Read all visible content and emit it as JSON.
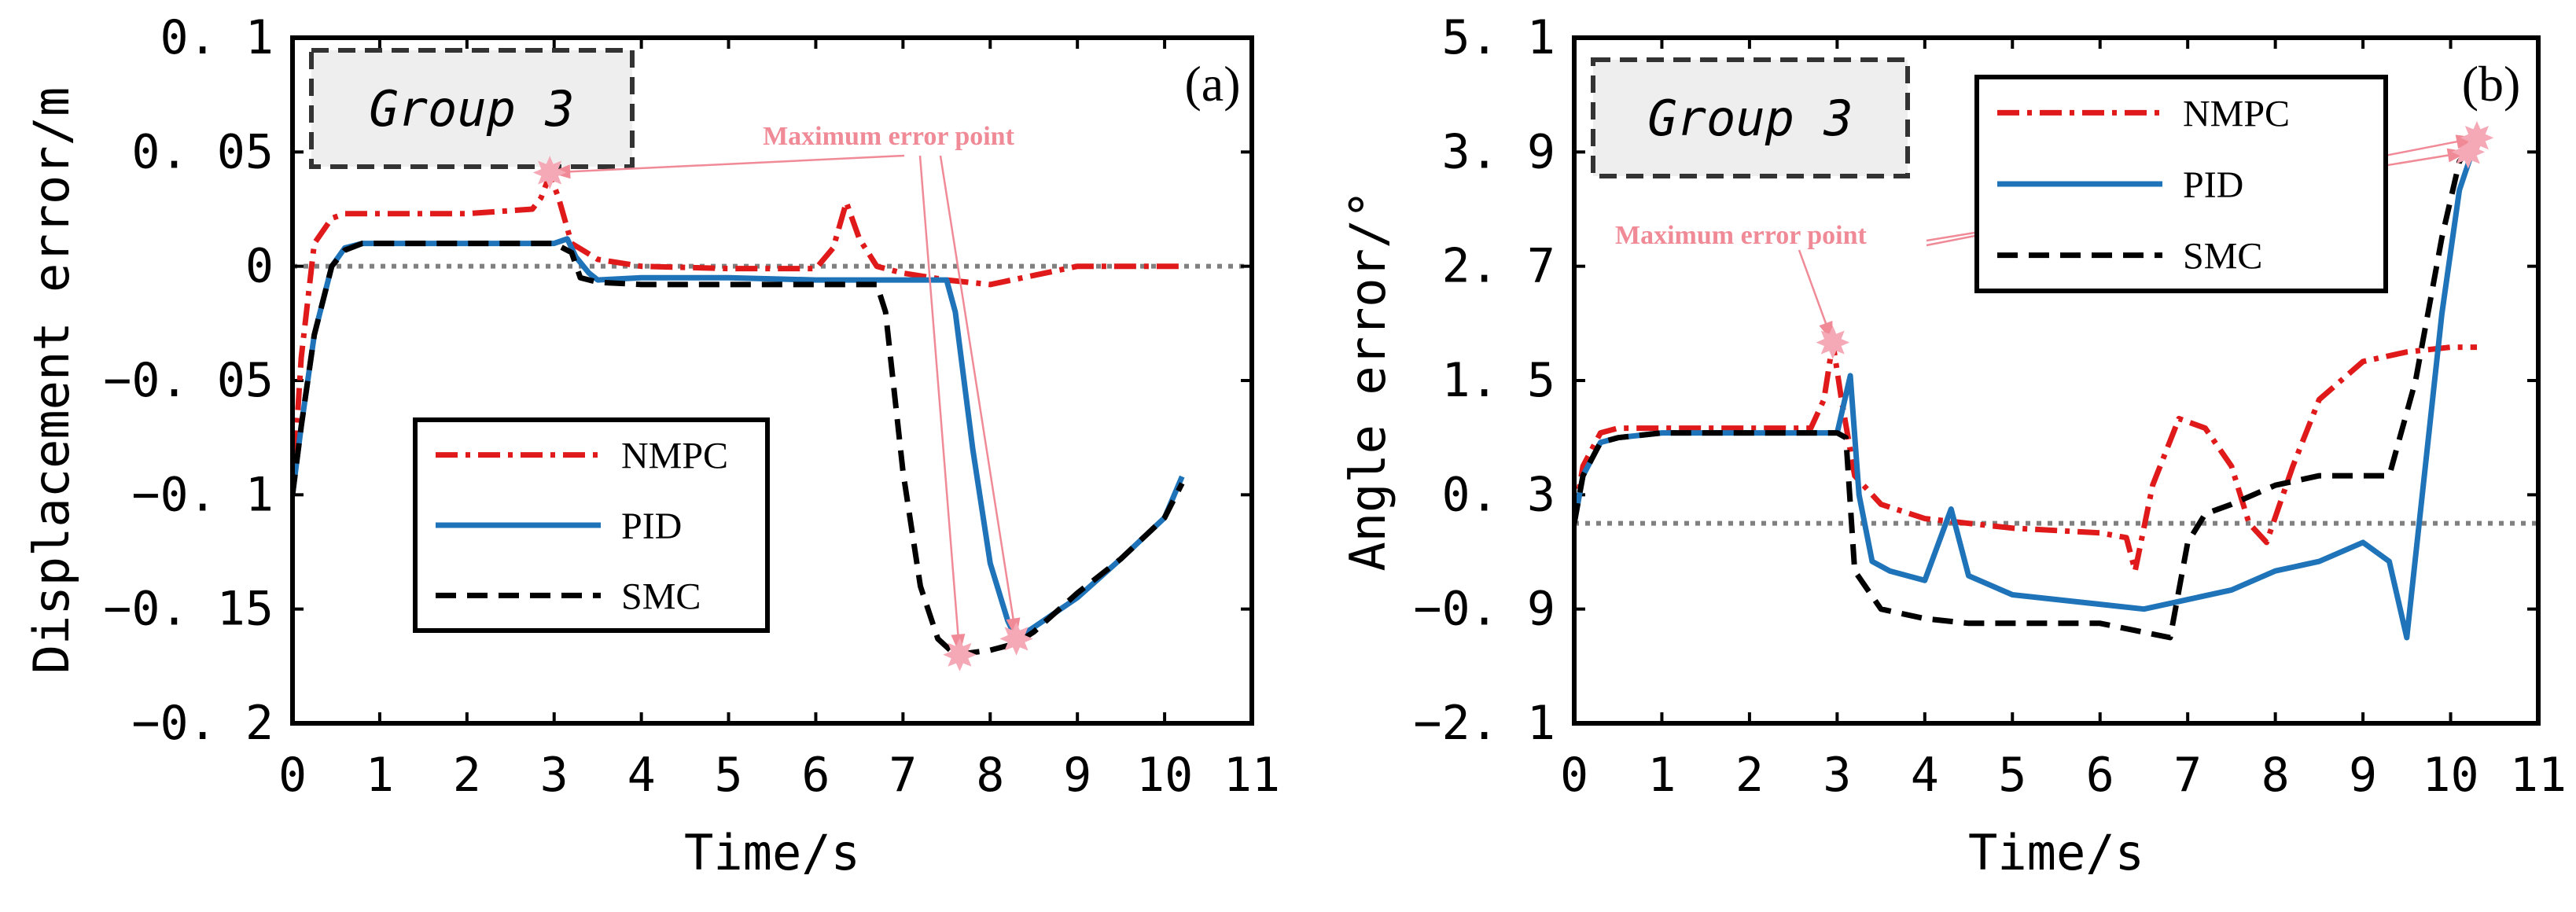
{
  "colors": {
    "nmpc": "#e01a1a",
    "pid": "#1f73b8",
    "smc": "#000000",
    "reference": "#808080",
    "annotation": "#f08a97",
    "marker": "#f5a8b5",
    "group_box_fill": "#eeeeee"
  },
  "chart_data": [
    {
      "type": "line",
      "panel": "(a)",
      "group_label": "Group 3",
      "xlabel": "Time/s",
      "ylabel": "Displacement error/m",
      "xlim": [
        0,
        11
      ],
      "ylim": [
        -0.2,
        0.1
      ],
      "xticks": [
        0,
        1,
        2,
        3,
        4,
        5,
        6,
        7,
        8,
        9,
        10,
        11
      ],
      "xtick_labels": [
        "0",
        "1",
        "2",
        "3",
        "4",
        "5",
        "6",
        "7",
        "8",
        "9",
        "10",
        "11"
      ],
      "yticks": [
        0.1,
        0.05,
        0,
        -0.05,
        -0.1,
        -0.15,
        -0.2
      ],
      "ytick_labels": [
        "0. 1",
        "0. 05",
        "0",
        "−0. 05",
        "−0. 1",
        "−0. 15",
        "−0. 2"
      ],
      "legend_position": "lower-left",
      "reference_line": 0,
      "series": [
        {
          "name": "NMPC",
          "x": [
            0,
            0.1,
            0.25,
            0.45,
            0.6,
            1.0,
            2.0,
            2.75,
            2.85,
            2.95,
            3.05,
            3.2,
            3.5,
            4.0,
            5.0,
            6.0,
            6.2,
            6.35,
            6.5,
            6.7,
            7.0,
            7.5,
            8.0,
            8.5,
            9.0,
            10.2
          ],
          "y": [
            -0.1,
            -0.04,
            0.01,
            0.021,
            0.023,
            0.023,
            0.023,
            0.025,
            0.03,
            0.04,
            0.03,
            0.01,
            0.003,
            0.0,
            -0.001,
            -0.001,
            0.008,
            0.028,
            0.012,
            0.0,
            -0.003,
            -0.006,
            -0.008,
            -0.004,
            0.0,
            0.0
          ]
        },
        {
          "name": "PID",
          "x": [
            0,
            0.1,
            0.25,
            0.45,
            0.6,
            0.8,
            1.0,
            2.0,
            3.0,
            3.15,
            3.25,
            3.4,
            3.5,
            4.0,
            5.0,
            6.0,
            7.0,
            7.5,
            7.6,
            7.8,
            8.0,
            8.2,
            8.3,
            8.5,
            9.0,
            9.5,
            10.0,
            10.2
          ],
          "y": [
            -0.1,
            -0.07,
            -0.03,
            0.0,
            0.008,
            0.01,
            0.01,
            0.01,
            0.01,
            0.012,
            0.004,
            -0.003,
            -0.006,
            -0.005,
            -0.005,
            -0.006,
            -0.006,
            -0.006,
            -0.02,
            -0.08,
            -0.13,
            -0.155,
            -0.163,
            -0.158,
            -0.145,
            -0.128,
            -0.11,
            -0.092
          ]
        },
        {
          "name": "SMC",
          "x": [
            0,
            0.1,
            0.25,
            0.45,
            0.6,
            0.8,
            1.0,
            2.0,
            3.0,
            3.2,
            3.3,
            3.5,
            4.0,
            5.0,
            6.0,
            6.7,
            6.8,
            7.0,
            7.2,
            7.4,
            7.6,
            8.0,
            8.3,
            8.5,
            9.0,
            9.5,
            10.0,
            10.2
          ],
          "y": [
            -0.1,
            -0.07,
            -0.03,
            0.0,
            0.007,
            0.01,
            0.01,
            0.01,
            0.01,
            0.006,
            -0.005,
            -0.007,
            -0.008,
            -0.008,
            -0.008,
            -0.008,
            -0.02,
            -0.09,
            -0.14,
            -0.163,
            -0.17,
            -0.168,
            -0.165,
            -0.16,
            -0.143,
            -0.128,
            -0.11,
            -0.095
          ]
        }
      ],
      "annotations": [
        {
          "text": "Maximum error point",
          "points": [
            [
              2.95,
              0.041
            ],
            [
              7.65,
              -0.17
            ],
            [
              8.3,
              -0.163
            ]
          ]
        }
      ]
    },
    {
      "type": "line",
      "panel": "(b)",
      "group_label": "Group 3",
      "xlabel": "Time/s",
      "ylabel": "Angle error/°",
      "xlim": [
        0,
        11
      ],
      "ylim": [
        -2.1,
        5.1
      ],
      "xticks": [
        0,
        1,
        2,
        3,
        4,
        5,
        6,
        7,
        8,
        9,
        10,
        11
      ],
      "xtick_labels": [
        "0",
        "1",
        "2",
        "3",
        "4",
        "5",
        "6",
        "7",
        "8",
        "9",
        "10",
        "11"
      ],
      "yticks": [
        5.1,
        3.9,
        2.7,
        1.5,
        0.3,
        -0.9,
        -2.1
      ],
      "ytick_labels": [
        "5. 1",
        "3. 9",
        "2. 7",
        "1. 5",
        "0. 3",
        "−0. 9",
        "−2. 1"
      ],
      "legend_position": "top-right",
      "reference_line": 0,
      "series": [
        {
          "name": "NMPC",
          "x": [
            0,
            0.1,
            0.3,
            0.5,
            1.0,
            2.0,
            2.7,
            2.85,
            2.95,
            3.05,
            3.2,
            3.5,
            4.0,
            5.0,
            6.0,
            6.3,
            6.4,
            6.6,
            6.9,
            7.2,
            7.5,
            7.7,
            7.9,
            8.2,
            8.5,
            9.0,
            9.5,
            10.0,
            10.3
          ],
          "y": [
            0.05,
            0.6,
            0.95,
            1.0,
            1.0,
            1.0,
            1.0,
            1.3,
            1.9,
            1.3,
            0.5,
            0.2,
            0.05,
            -0.05,
            -0.1,
            -0.15,
            -0.5,
            0.4,
            1.1,
            1.0,
            0.6,
            0.0,
            -0.2,
            0.6,
            1.3,
            1.7,
            1.8,
            1.85,
            1.85
          ]
        },
        {
          "name": "PID",
          "x": [
            0,
            0.1,
            0.3,
            0.5,
            1.0,
            2.0,
            3.0,
            3.15,
            3.25,
            3.4,
            3.6,
            4.0,
            4.3,
            4.5,
            5.0,
            6.0,
            6.5,
            7.0,
            7.5,
            8.0,
            8.5,
            9.0,
            9.3,
            9.5,
            9.7,
            9.9,
            10.1,
            10.3
          ],
          "y": [
            0.0,
            0.5,
            0.85,
            0.9,
            0.95,
            0.95,
            0.95,
            1.55,
            0.3,
            -0.4,
            -0.5,
            -0.6,
            0.15,
            -0.55,
            -0.75,
            -0.85,
            -0.9,
            -0.8,
            -0.7,
            -0.5,
            -0.4,
            -0.2,
            -0.4,
            -1.2,
            0.5,
            2.2,
            3.5,
            4.05
          ]
        },
        {
          "name": "SMC",
          "x": [
            0,
            0.1,
            0.3,
            0.5,
            1.0,
            2.0,
            3.0,
            3.1,
            3.2,
            3.5,
            4.0,
            4.5,
            5.0,
            6.0,
            6.8,
            7.0,
            7.2,
            7.5,
            8.0,
            8.5,
            9.0,
            9.3,
            9.6,
            9.9,
            10.1,
            10.3
          ],
          "y": [
            0.0,
            0.5,
            0.85,
            0.9,
            0.95,
            0.95,
            0.95,
            0.9,
            -0.5,
            -0.9,
            -1.0,
            -1.05,
            -1.05,
            -1.05,
            -1.2,
            -0.2,
            0.1,
            0.2,
            0.4,
            0.5,
            0.5,
            0.5,
            1.5,
            3.0,
            3.8,
            4.05
          ]
        }
      ],
      "annotations": [
        {
          "text": "Maximum error point",
          "points": [
            [
              2.95,
              1.9
            ],
            [
              10.2,
              3.9
            ],
            [
              10.3,
              4.05
            ]
          ]
        }
      ]
    }
  ]
}
